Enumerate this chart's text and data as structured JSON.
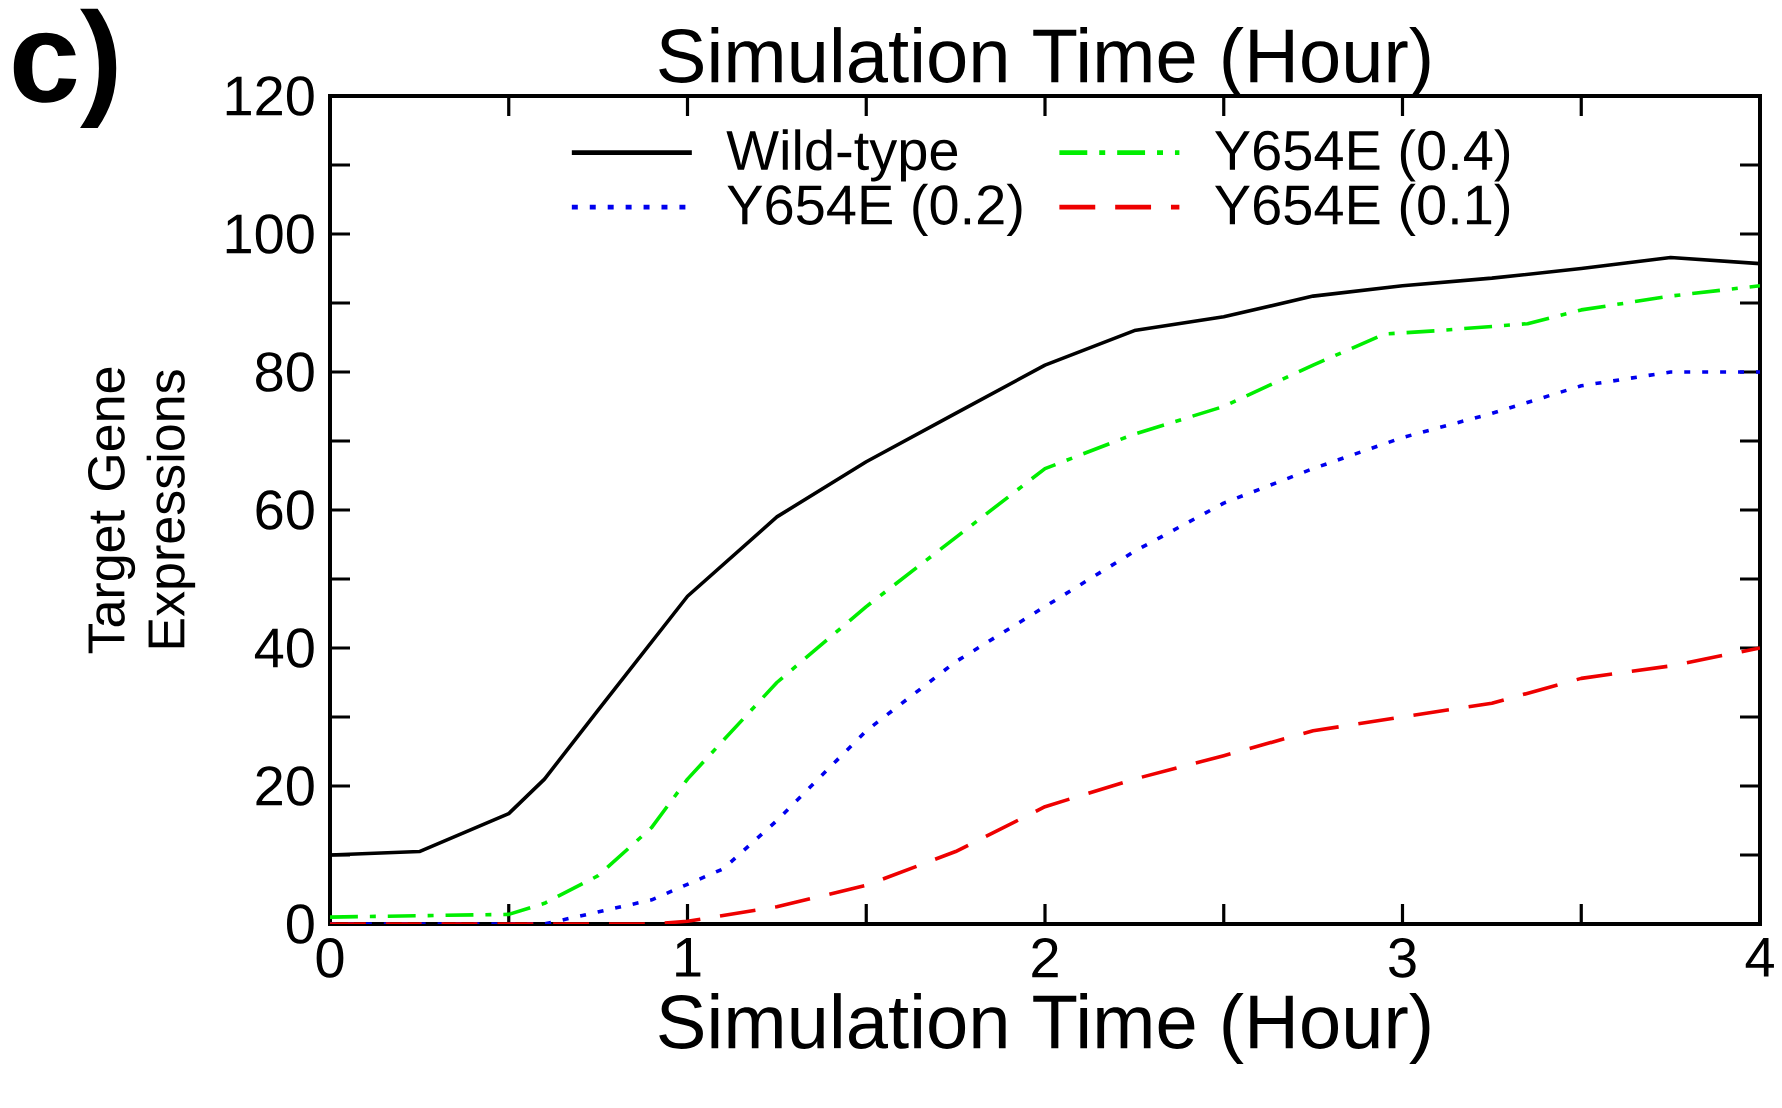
{
  "chart_data": {
    "type": "line",
    "xlabel": "Simulation Time (Hour)",
    "x2label": "Simulation Time (Hour)",
    "ylabel": "Target Gene Expressions",
    "annotations": [
      "c)"
    ],
    "xlim": [
      0,
      4
    ],
    "xticks": [
      0,
      {
        "value": 0.5,
        "label": null
      },
      1,
      {
        "value": 1.5,
        "label": null
      },
      2,
      {
        "value": 2.5,
        "label": null
      },
      3,
      {
        "value": 3.5,
        "label": null
      },
      4
    ],
    "ylim": [
      0,
      120
    ],
    "yticks": [
      0,
      {
        "value": 10,
        "label": null
      },
      20,
      {
        "value": 30,
        "label": null
      },
      40,
      {
        "value": 50,
        "label": null
      },
      60,
      {
        "value": 70,
        "label": null
      },
      80,
      {
        "value": 90,
        "label": null
      },
      100,
      {
        "value": 110,
        "label": null
      },
      120
    ],
    "legend": "top",
    "grid": false,
    "marker": "none",
    "series": [
      {
        "name": "Wild-type",
        "color": "#000000",
        "line_style": "solid",
        "x": [
          0,
          0.25,
          0.5,
          0.6,
          0.75,
          1,
          1.25,
          1.5,
          1.75,
          2,
          2.25,
          2.5,
          2.75,
          3,
          3.25,
          3.5,
          3.75,
          4
        ],
        "values": [
          10,
          10.5,
          16,
          21,
          31,
          47.5,
          59,
          67,
          74,
          81,
          86,
          88,
          91,
          92.5,
          93.6,
          95,
          96.6,
          95.7
        ]
      },
      {
        "name": "Y654E (0.4)",
        "color": "#00ee00",
        "line_style": "dashdot",
        "x": [
          0,
          0.5,
          0.6,
          0.75,
          0.9,
          1,
          1.25,
          1.5,
          1.75,
          2,
          2.25,
          2.5,
          2.75,
          2.95,
          3.1,
          3.35,
          3.5,
          3.75,
          4
        ],
        "values": [
          1,
          1.4,
          3,
          7,
          14,
          21,
          35,
          46,
          56,
          66,
          71,
          75,
          81,
          85.5,
          86,
          87,
          89,
          91,
          92.5
        ]
      },
      {
        "name": "Y654E (0.2)",
        "color": "#0000ee",
        "line_style": "dotted",
        "x": [
          0,
          0.6,
          0.9,
          1.1,
          1.25,
          1.5,
          1.75,
          2,
          2.25,
          2.5,
          2.75,
          3,
          3.25,
          3.5,
          3.75,
          4
        ],
        "values": [
          0,
          0,
          3.5,
          8,
          15,
          28,
          38,
          46,
          54,
          61,
          66,
          70.5,
          74,
          78,
          80,
          80
        ]
      },
      {
        "name": "Y654E (0.1)",
        "color": "#ee0000",
        "line_style": "dashed",
        "x": [
          0,
          0.9,
          1,
          1.25,
          1.5,
          1.75,
          2,
          2.25,
          2.5,
          2.75,
          3,
          3.25,
          3.5,
          3.75,
          4
        ],
        "values": [
          0,
          0,
          0.4,
          2.5,
          5.6,
          10.5,
          17,
          21,
          24.4,
          28,
          30,
          32,
          35.6,
          37.4,
          40
        ]
      }
    ]
  }
}
